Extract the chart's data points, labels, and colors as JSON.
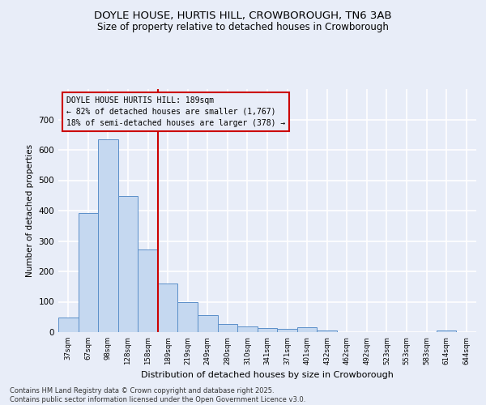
{
  "title": "DOYLE HOUSE, HURTIS HILL, CROWBOROUGH, TN6 3AB",
  "subtitle": "Size of property relative to detached houses in Crowborough",
  "xlabel": "Distribution of detached houses by size in Crowborough",
  "ylabel": "Number of detached properties",
  "bar_labels": [
    "37sqm",
    "67sqm",
    "98sqm",
    "128sqm",
    "158sqm",
    "189sqm",
    "219sqm",
    "249sqm",
    "280sqm",
    "310sqm",
    "341sqm",
    "371sqm",
    "401sqm",
    "432sqm",
    "462sqm",
    "492sqm",
    "523sqm",
    "553sqm",
    "583sqm",
    "614sqm",
    "644sqm"
  ],
  "bar_values": [
    48,
    393,
    635,
    447,
    271,
    160,
    100,
    55,
    28,
    18,
    13,
    11,
    15,
    5,
    0,
    0,
    0,
    0,
    0,
    5,
    0
  ],
  "bar_color": "#c5d8f0",
  "bar_edge_color": "#5b8fc9",
  "reference_line_color": "#cc0000",
  "reference_bar_index": 5,
  "annotation_title": "DOYLE HOUSE HURTIS HILL: 189sqm",
  "annotation_line1": "← 82% of detached houses are smaller (1,767)",
  "annotation_line2": "18% of semi-detached houses are larger (378) →",
  "annotation_box_color": "#cc0000",
  "ylim": [
    0,
    800
  ],
  "yticks": [
    0,
    100,
    200,
    300,
    400,
    500,
    600,
    700,
    800
  ],
  "background_color": "#e8edf8",
  "grid_color": "#ffffff",
  "footer_line1": "Contains HM Land Registry data © Crown copyright and database right 2025.",
  "footer_line2": "Contains public sector information licensed under the Open Government Licence v3.0."
}
